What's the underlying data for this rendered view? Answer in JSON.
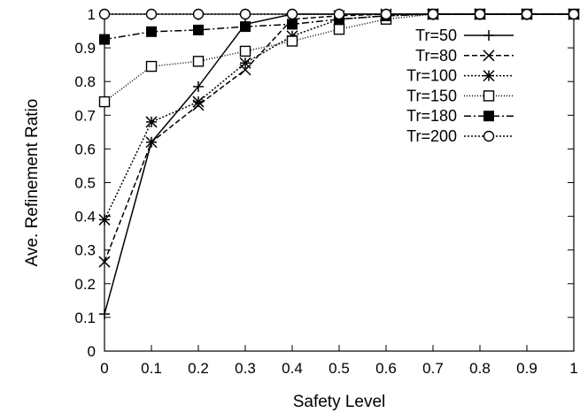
{
  "chart_data": {
    "type": "line",
    "title": "",
    "xlabel": "Safety Level",
    "ylabel": "Ave. Refinement Ratio",
    "xlim": [
      0,
      1
    ],
    "ylim": [
      0,
      1
    ],
    "xticks": [
      "0",
      "0.1",
      "0.2",
      "0.3",
      "0.4",
      "0.5",
      "0.6",
      "0.7",
      "0.8",
      "0.9",
      "1"
    ],
    "yticks": [
      "0",
      "0.1",
      "0.2",
      "0.3",
      "0.4",
      "0.5",
      "0.6",
      "0.7",
      "0.8",
      "0.9",
      "1"
    ],
    "grid": false,
    "legend_position": "top-right",
    "x": [
      0,
      0.1,
      0.2,
      0.3,
      0.4,
      0.5,
      0.6,
      0.7,
      0.8,
      0.9,
      1.0
    ],
    "series": [
      {
        "name": "Tr=50",
        "marker": "plus",
        "dash": "solid",
        "values": [
          0.11,
          0.62,
          0.785,
          0.97,
          1.0,
          1.0,
          1.0,
          1.0,
          1.0,
          1.0,
          1.0
        ]
      },
      {
        "name": "Tr=80",
        "marker": "cross",
        "dash": "dashed",
        "values": [
          0.265,
          0.62,
          0.73,
          0.835,
          0.985,
          0.995,
          1.0,
          1.0,
          1.0,
          1.0,
          1.0
        ]
      },
      {
        "name": "Tr=100",
        "marker": "star",
        "dash": "dotted",
        "values": [
          0.39,
          0.68,
          0.74,
          0.855,
          0.935,
          0.985,
          0.995,
          1.0,
          1.0,
          1.0,
          1.0
        ]
      },
      {
        "name": "Tr=150",
        "marker": "open-square",
        "dash": "fine-dotted",
        "values": [
          0.74,
          0.845,
          0.86,
          0.89,
          0.92,
          0.955,
          0.985,
          1.0,
          1.0,
          1.0,
          1.0
        ]
      },
      {
        "name": "Tr=180",
        "marker": "filled-square",
        "dash": "dash-dot",
        "values": [
          0.925,
          0.948,
          0.953,
          0.963,
          0.97,
          0.985,
          0.995,
          1.0,
          1.0,
          1.0,
          1.0
        ]
      },
      {
        "name": "Tr=200",
        "marker": "open-circle",
        "dash": "dotted",
        "values": [
          1.0,
          1.0,
          1.0,
          1.0,
          1.0,
          1.0,
          1.0,
          1.0,
          1.0,
          1.0,
          1.0
        ]
      }
    ]
  }
}
